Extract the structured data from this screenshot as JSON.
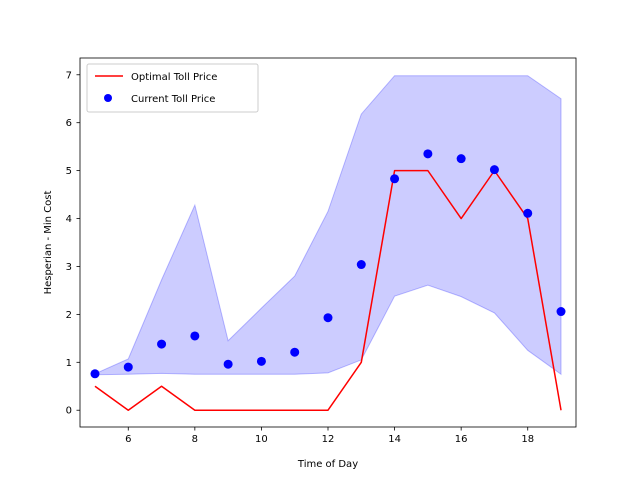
{
  "chart_data": {
    "type": "line",
    "xlabel": "Time of Day",
    "ylabel": "Hesperian - Min Cost",
    "xlim": [
      4.55,
      19.45
    ],
    "ylim": [
      -0.35,
      7.35
    ],
    "grid": false,
    "legend_position": "top-left",
    "x_ticks": [
      6,
      8,
      10,
      12,
      14,
      16,
      18
    ],
    "y_ticks": [
      0,
      1,
      2,
      3,
      4,
      5,
      6,
      7
    ],
    "x": [
      5,
      6,
      7,
      8,
      9,
      10,
      11,
      12,
      13,
      14,
      15,
      16,
      17,
      18,
      19
    ],
    "series": [
      {
        "name": "Optimal Toll Price",
        "kind": "line",
        "color": "#ff0000",
        "values": [
          0.5,
          0.0,
          0.5,
          0.0,
          0.0,
          0.0,
          0.0,
          0.0,
          1.0,
          5.0,
          5.0,
          4.0,
          5.0,
          4.0,
          0.0
        ]
      },
      {
        "name": "Current Toll Price",
        "kind": "scatter",
        "color": "#0000ff",
        "values": [
          0.76,
          0.9,
          1.38,
          1.55,
          0.96,
          1.02,
          1.21,
          1.93,
          3.04,
          4.83,
          5.35,
          5.25,
          5.02,
          4.11,
          2.06
        ]
      }
    ],
    "band": {
      "color": "#0000ff",
      "lower": [
        0.74,
        0.75,
        0.77,
        0.75,
        0.75,
        0.75,
        0.75,
        0.78,
        1.05,
        2.38,
        2.61,
        2.37,
        2.03,
        1.25,
        0.75
      ],
      "upper": [
        0.76,
        1.07,
        2.72,
        4.28,
        1.45,
        2.13,
        2.8,
        4.15,
        6.18,
        6.98,
        6.98,
        6.98,
        6.98,
        6.98,
        6.5
      ]
    }
  }
}
